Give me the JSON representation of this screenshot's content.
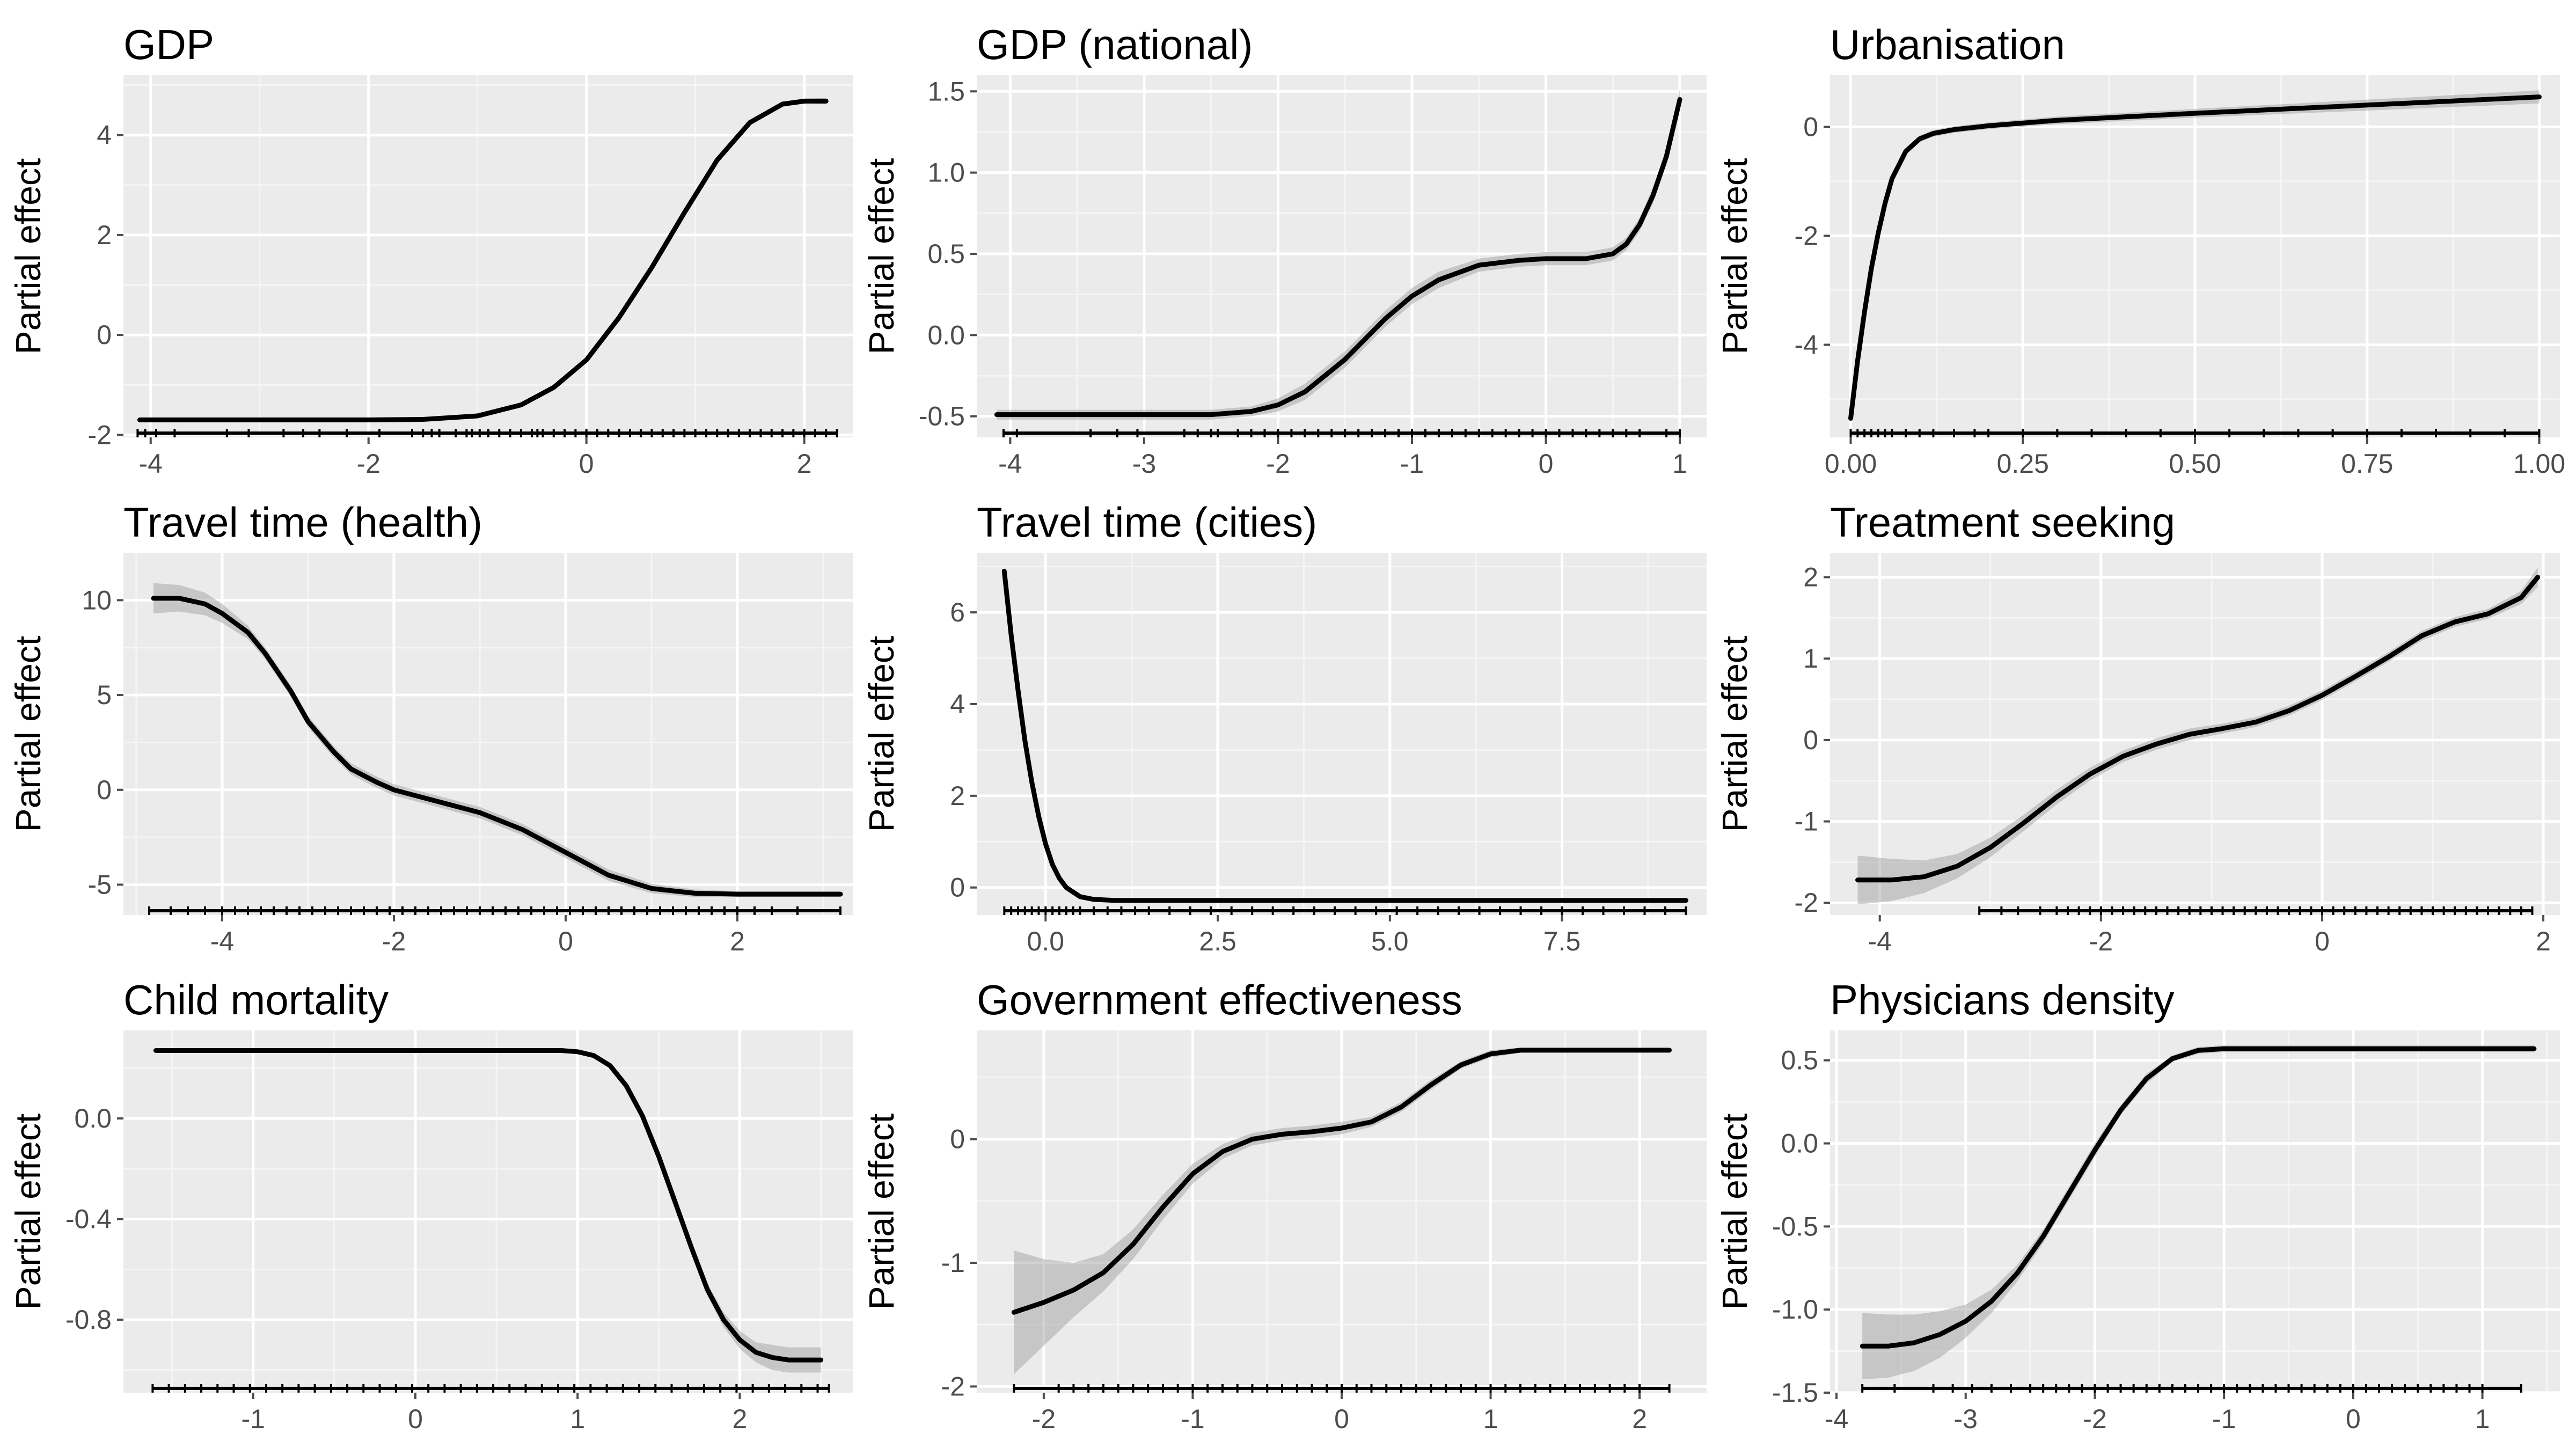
{
  "chart_data": [
    {
      "type": "line",
      "title": "GDP",
      "xlabel": "",
      "ylabel": "Partial effect",
      "xlim": [
        -4.25,
        2.45
      ],
      "ylim": [
        -2.05,
        5.2
      ],
      "x_ticks": [
        -4,
        -2,
        0,
        2
      ],
      "x_tick_labels": [
        "-4",
        "-2",
        "0",
        "2"
      ],
      "y_ticks": [
        -2,
        0,
        2,
        4
      ],
      "y_tick_labels": [
        "-2",
        "0",
        "2",
        "4"
      ],
      "grid": true,
      "x": [
        -4.1,
        -3,
        -2,
        -1.5,
        -1,
        -0.6,
        -0.3,
        0,
        0.3,
        0.6,
        0.9,
        1.2,
        1.5,
        1.8,
        2,
        2.2
      ],
      "y": [
        -1.7,
        -1.7,
        -1.7,
        -1.69,
        -1.62,
        -1.4,
        -1.05,
        -0.5,
        0.35,
        1.35,
        2.45,
        3.5,
        4.25,
        4.62,
        4.68,
        4.68
      ],
      "ci_halfwidth": [
        0.04,
        0.04,
        0.04,
        0.04,
        0.04,
        0.05,
        0.05,
        0.05,
        0.05,
        0.05,
        0.05,
        0.05,
        0.05,
        0.05,
        0.05,
        0.06
      ],
      "rug": [
        -4.12,
        -4.05,
        -3.95,
        -3.78,
        -3.3,
        -3.1,
        -2.78,
        -2.6,
        -2.45,
        -2.2,
        -1.9,
        -1.6,
        -1.5,
        -1.42,
        -1.35,
        -1.2,
        -1.1,
        -1.05,
        -0.98,
        -0.9,
        -0.8,
        -0.7,
        -0.6,
        -0.5,
        -0.45,
        -0.4,
        -0.3,
        -0.2,
        -0.1,
        0,
        0.1,
        0.2,
        0.3,
        0.4,
        0.5,
        0.6,
        0.7,
        0.8,
        0.9,
        1.0,
        1.1,
        1.2,
        1.3,
        1.4,
        1.5,
        1.6,
        1.7,
        1.8,
        1.9,
        2.0,
        2.1,
        2.2,
        2.3
      ]
    },
    {
      "type": "line",
      "title": "GDP (national)",
      "xlabel": "",
      "ylabel": "Partial effect",
      "xlim": [
        -4.25,
        1.2
      ],
      "ylim": [
        -0.63,
        1.6
      ],
      "x_ticks": [
        -4,
        -3,
        -2,
        -1,
        0,
        1
      ],
      "x_tick_labels": [
        "-4",
        "-3",
        "-2",
        "-1",
        "0",
        "1"
      ],
      "y_ticks": [
        -0.5,
        0,
        0.5,
        1,
        1.5
      ],
      "y_tick_labels": [
        "-0.5",
        "0.0",
        "0.5",
        "1.0",
        "1.5"
      ],
      "grid": true,
      "x": [
        -4.1,
        -3,
        -2.5,
        -2.2,
        -2,
        -1.8,
        -1.5,
        -1.2,
        -1,
        -0.8,
        -0.5,
        -0.2,
        0,
        0.3,
        0.5,
        0.6,
        0.7,
        0.8,
        0.9,
        1
      ],
      "y": [
        -0.49,
        -0.49,
        -0.49,
        -0.47,
        -0.43,
        -0.35,
        -0.15,
        0.1,
        0.24,
        0.34,
        0.43,
        0.46,
        0.47,
        0.47,
        0.5,
        0.56,
        0.68,
        0.86,
        1.1,
        1.45
      ],
      "ci_halfwidth": [
        0.03,
        0.03,
        0.03,
        0.03,
        0.04,
        0.05,
        0.05,
        0.05,
        0.05,
        0.05,
        0.04,
        0.04,
        0.04,
        0.04,
        0.04,
        0.04,
        0.04,
        0.05,
        0.05,
        0.06
      ],
      "rug": [
        -4.05,
        -3.95,
        -3.4,
        -3.2,
        -3.05,
        -2.7,
        -2.6,
        -2.5,
        -2.45,
        -2.3,
        -2.2,
        -2.1,
        -2.0,
        -1.9,
        -1.8,
        -1.7,
        -1.6,
        -1.5,
        -1.4,
        -1.3,
        -1.2,
        -1.1,
        -1.0,
        -0.9,
        -0.8,
        -0.7,
        -0.6,
        -0.5,
        -0.4,
        -0.3,
        -0.2,
        -0.1,
        0,
        0.1,
        0.2,
        0.3,
        0.4,
        0.5,
        0.6,
        0.7,
        0.9,
        1.0
      ]
    },
    {
      "type": "line",
      "title": "Urbanisation",
      "xlabel": "",
      "ylabel": "Partial effect",
      "xlim": [
        -0.03,
        1.03
      ],
      "ylim": [
        -5.7,
        0.95
      ],
      "x_ticks": [
        0,
        0.25,
        0.5,
        0.75,
        1
      ],
      "x_tick_labels": [
        "0.00",
        "0.25",
        "0.50",
        "0.75",
        "1.00"
      ],
      "y_ticks": [
        -4,
        -2,
        0
      ],
      "y_tick_labels": [
        "-4",
        "-2",
        "0"
      ],
      "grid": true,
      "x": [
        0,
        0.01,
        0.02,
        0.03,
        0.04,
        0.05,
        0.06,
        0.08,
        0.1,
        0.12,
        0.15,
        0.2,
        0.3,
        0.5,
        0.75,
        1
      ],
      "y": [
        -5.35,
        -4.3,
        -3.4,
        -2.6,
        -1.95,
        -1.4,
        -0.95,
        -0.45,
        -0.22,
        -0.12,
        -0.05,
        0.02,
        0.12,
        0.25,
        0.4,
        0.55
      ],
      "ci_halfwidth": [
        0.08,
        0.08,
        0.07,
        0.07,
        0.06,
        0.06,
        0.06,
        0.06,
        0.06,
        0.06,
        0.06,
        0.06,
        0.07,
        0.08,
        0.1,
        0.12
      ],
      "rug": [
        0,
        0.01,
        0.02,
        0.03,
        0.04,
        0.05,
        0.06,
        0.08,
        0.1,
        0.12,
        0.15,
        0.18,
        0.2,
        0.25,
        0.3,
        0.35,
        0.4,
        0.45,
        0.5,
        0.55,
        0.6,
        0.65,
        0.7,
        0.75,
        0.8,
        0.85,
        0.9,
        0.95,
        1
      ]
    },
    {
      "type": "line",
      "title": "Travel time (health)",
      "xlabel": "",
      "ylabel": "Partial effect",
      "xlim": [
        -5.15,
        3.35
      ],
      "ylim": [
        -6.6,
        12.5
      ],
      "x_ticks": [
        -4,
        -2,
        0,
        2
      ],
      "x_tick_labels": [
        "-4",
        "-2",
        "0",
        "2"
      ],
      "y_ticks": [
        -5,
        0,
        5,
        10
      ],
      "y_tick_labels": [
        "-5",
        "0",
        "5",
        "10"
      ],
      "grid": true,
      "x": [
        -4.8,
        -4.5,
        -4.2,
        -4,
        -3.7,
        -3.5,
        -3.2,
        -3,
        -2.7,
        -2.5,
        -2.2,
        -2,
        -1.5,
        -1,
        -0.5,
        0,
        0.5,
        1,
        1.5,
        2,
        2.5,
        3.2
      ],
      "y": [
        10.1,
        10.1,
        9.8,
        9.3,
        8.3,
        7.2,
        5.2,
        3.6,
        2.0,
        1.1,
        0.4,
        0.0,
        -0.6,
        -1.2,
        -2.1,
        -3.3,
        -4.5,
        -5.2,
        -5.45,
        -5.5,
        -5.5,
        -5.5
      ],
      "ci_halfwidth": [
        0.8,
        0.7,
        0.6,
        0.5,
        0.35,
        0.3,
        0.3,
        0.3,
        0.3,
        0.3,
        0.3,
        0.3,
        0.3,
        0.3,
        0.3,
        0.3,
        0.3,
        0.25,
        0.2,
        0.15,
        0.15,
        0.15
      ],
      "rug": [
        -4.85,
        -4.6,
        -4.4,
        -4.2,
        -4.0,
        -3.85,
        -3.7,
        -3.55,
        -3.4,
        -3.25,
        -3.1,
        -2.95,
        -2.8,
        -2.65,
        -2.5,
        -2.35,
        -2.2,
        -2.05,
        -1.9,
        -1.75,
        -1.6,
        -1.45,
        -1.3,
        -1.15,
        -1.0,
        -0.85,
        -0.7,
        -0.55,
        -0.4,
        -0.25,
        -0.1,
        0.05,
        0.2,
        0.35,
        0.5,
        0.65,
        0.8,
        0.95,
        1.1,
        1.25,
        1.4,
        1.55,
        1.7,
        1.85,
        2.0,
        2.2,
        2.4,
        2.7,
        3.2
      ]
    },
    {
      "type": "line",
      "title": "Travel time (cities)",
      "xlabel": "",
      "ylabel": "Partial effect",
      "xlim": [
        -1.0,
        9.6
      ],
      "ylim": [
        -0.6,
        7.3
      ],
      "x_ticks": [
        0,
        2.5,
        5,
        7.5
      ],
      "x_tick_labels": [
        "0.0",
        "2.5",
        "5.0",
        "7.5"
      ],
      "y_ticks": [
        0,
        2,
        4,
        6
      ],
      "y_tick_labels": [
        "0",
        "2",
        "4",
        "6"
      ],
      "grid": true,
      "x": [
        -0.6,
        -0.5,
        -0.4,
        -0.3,
        -0.2,
        -0.1,
        0,
        0.1,
        0.2,
        0.3,
        0.5,
        0.7,
        1,
        2,
        4,
        6,
        8,
        9.3
      ],
      "y": [
        6.9,
        5.5,
        4.3,
        3.2,
        2.3,
        1.55,
        0.95,
        0.5,
        0.2,
        0.0,
        -0.2,
        -0.26,
        -0.28,
        -0.28,
        -0.28,
        -0.28,
        -0.28,
        -0.28
      ],
      "ci_halfwidth": [
        0.06,
        0.05,
        0.05,
        0.04,
        0.04,
        0.04,
        0.03,
        0.03,
        0.03,
        0.03,
        0.03,
        0.02,
        0.02,
        0.02,
        0.02,
        0.02,
        0.02,
        0.02
      ],
      "rug": [
        -0.6,
        -0.5,
        -0.4,
        -0.3,
        -0.2,
        -0.1,
        0,
        0.1,
        0.2,
        0.3,
        0.4,
        0.5,
        0.7,
        0.9,
        1.1,
        1.3,
        1.5,
        1.8,
        2.1,
        2.4,
        2.7,
        3.0,
        3.3,
        3.6,
        3.9,
        4.2,
        4.5,
        4.8,
        5.1,
        5.4,
        5.7,
        6.0,
        6.3,
        6.6,
        6.9,
        7.2,
        7.5,
        7.8,
        8.1,
        8.4,
        8.7,
        9.0,
        9.3
      ]
    },
    {
      "type": "line",
      "title": "Treatment seeking",
      "xlabel": "",
      "ylabel": "Partial effect",
      "xlim": [
        -4.45,
        2.15
      ],
      "ylim": [
        -2.15,
        2.3
      ],
      "x_ticks": [
        -4,
        -2,
        0,
        2
      ],
      "x_tick_labels": [
        "-4",
        "-2",
        "0",
        "2"
      ],
      "y_ticks": [
        -2,
        -1,
        0,
        1,
        2
      ],
      "y_tick_labels": [
        "-2",
        "-1",
        "0",
        "1",
        "2"
      ],
      "grid": true,
      "x": [
        -4.2,
        -3.9,
        -3.6,
        -3.3,
        -3.0,
        -2.7,
        -2.4,
        -2.1,
        -1.8,
        -1.5,
        -1.2,
        -0.9,
        -0.6,
        -0.3,
        0,
        0.3,
        0.6,
        0.9,
        1.2,
        1.5,
        1.8,
        1.95
      ],
      "y": [
        -1.72,
        -1.72,
        -1.68,
        -1.55,
        -1.32,
        -1.02,
        -0.7,
        -0.42,
        -0.2,
        -0.05,
        0.07,
        0.14,
        0.22,
        0.36,
        0.55,
        0.78,
        1.02,
        1.28,
        1.45,
        1.55,
        1.75,
        2.0
      ],
      "ci_halfwidth": [
        0.3,
        0.26,
        0.2,
        0.15,
        0.12,
        0.1,
        0.09,
        0.08,
        0.07,
        0.07,
        0.07,
        0.06,
        0.06,
        0.06,
        0.06,
        0.06,
        0.06,
        0.06,
        0.06,
        0.06,
        0.08,
        0.12
      ],
      "rug": [
        -3.1,
        -2.9,
        -2.75,
        -2.55,
        -2.4,
        -2.3,
        -2.2,
        -2.1,
        -2.0,
        -1.9,
        -1.8,
        -1.7,
        -1.6,
        -1.5,
        -1.4,
        -1.3,
        -1.2,
        -1.1,
        -1.0,
        -0.9,
        -0.8,
        -0.7,
        -0.6,
        -0.5,
        -0.4,
        -0.3,
        -0.2,
        -0.1,
        0,
        0.1,
        0.2,
        0.3,
        0.4,
        0.5,
        0.6,
        0.7,
        0.8,
        0.9,
        1.0,
        1.1,
        1.2,
        1.3,
        1.4,
        1.5,
        1.6,
        1.7,
        1.8,
        1.9
      ]
    },
    {
      "type": "line",
      "title": "Child mortality",
      "xlabel": "",
      "ylabel": "Partial effect",
      "xlim": [
        -1.8,
        2.7
      ],
      "ylim": [
        -1.09,
        0.35
      ],
      "x_ticks": [
        -1,
        0,
        1,
        2
      ],
      "x_tick_labels": [
        "-1",
        "0",
        "1",
        "2"
      ],
      "y_ticks": [
        -0.8,
        -0.4,
        0
      ],
      "y_tick_labels": [
        "-0.8",
        "-0.4",
        "0.0"
      ],
      "grid": true,
      "x": [
        -1.6,
        -1,
        0,
        0.5,
        0.8,
        0.9,
        1.0,
        1.1,
        1.2,
        1.3,
        1.4,
        1.5,
        1.6,
        1.7,
        1.8,
        1.9,
        2.0,
        2.1,
        2.2,
        2.3,
        2.4,
        2.5
      ],
      "y": [
        0.27,
        0.27,
        0.27,
        0.27,
        0.27,
        0.27,
        0.265,
        0.25,
        0.21,
        0.13,
        0.01,
        -0.15,
        -0.33,
        -0.51,
        -0.68,
        -0.8,
        -0.88,
        -0.93,
        -0.95,
        -0.96,
        -0.96,
        -0.96
      ],
      "ci_halfwidth": [
        0.008,
        0.008,
        0.008,
        0.008,
        0.008,
        0.008,
        0.008,
        0.008,
        0.01,
        0.01,
        0.012,
        0.012,
        0.015,
        0.02,
        0.025,
        0.03,
        0.035,
        0.04,
        0.05,
        0.05,
        0.05,
        0.05
      ],
      "rug": [
        -1.62,
        -1.52,
        -1.42,
        -1.32,
        -1.22,
        -1.12,
        -1.02,
        -0.92,
        -0.82,
        -0.72,
        -0.62,
        -0.52,
        -0.42,
        -0.32,
        -0.22,
        -0.12,
        -0.02,
        0.08,
        0.18,
        0.28,
        0.38,
        0.48,
        0.58,
        0.68,
        0.78,
        0.88,
        0.98,
        1.08,
        1.18,
        1.28,
        1.38,
        1.48,
        1.58,
        1.68,
        1.78,
        1.88,
        1.98,
        2.08,
        2.18,
        2.28,
        2.38,
        2.48,
        2.55
      ]
    },
    {
      "type": "line",
      "title": "Government effectiveness",
      "xlabel": "",
      "ylabel": "Partial effect",
      "xlim": [
        -2.45,
        2.45
      ],
      "ylim": [
        -2.05,
        0.88
      ],
      "x_ticks": [
        -2,
        -1,
        0,
        1,
        2
      ],
      "x_tick_labels": [
        "-2",
        "-1",
        "0",
        "1",
        "2"
      ],
      "y_ticks": [
        -2,
        -1,
        0
      ],
      "y_tick_labels": [
        "-2",
        "-1",
        "0"
      ],
      "grid": true,
      "x": [
        -2.2,
        -2.0,
        -1.8,
        -1.6,
        -1.4,
        -1.2,
        -1.0,
        -0.8,
        -0.6,
        -0.4,
        -0.2,
        0,
        0.2,
        0.4,
        0.6,
        0.8,
        1.0,
        1.2,
        1.5,
        2.0,
        2.2
      ],
      "y": [
        -1.4,
        -1.32,
        -1.22,
        -1.08,
        -0.85,
        -0.55,
        -0.28,
        -0.1,
        0.0,
        0.04,
        0.06,
        0.09,
        0.14,
        0.26,
        0.44,
        0.6,
        0.69,
        0.72,
        0.72,
        0.72,
        0.72
      ],
      "ci_halfwidth": [
        0.5,
        0.35,
        0.22,
        0.15,
        0.12,
        0.1,
        0.08,
        0.06,
        0.05,
        0.05,
        0.05,
        0.05,
        0.04,
        0.04,
        0.04,
        0.03,
        0.03,
        0.02,
        0.02,
        0.02,
        0.02
      ],
      "rug": [
        -2.2,
        -1.9,
        -1.8,
        -1.7,
        -1.6,
        -1.5,
        -1.4,
        -1.3,
        -1.2,
        -1.1,
        -1.0,
        -0.9,
        -0.8,
        -0.7,
        -0.6,
        -0.5,
        -0.4,
        -0.3,
        -0.2,
        -0.1,
        0,
        0.1,
        0.2,
        0.3,
        0.4,
        0.5,
        0.6,
        0.7,
        0.8,
        0.9,
        1.0,
        1.1,
        1.2,
        1.3,
        1.4,
        1.5,
        1.6,
        1.7,
        1.8,
        1.9,
        2.0,
        2.2
      ]
    },
    {
      "type": "line",
      "title": "Physicians density",
      "xlabel": "",
      "ylabel": "Partial effect",
      "xlim": [
        -4.05,
        1.6
      ],
      "ylim": [
        -1.5,
        0.68
      ],
      "x_ticks": [
        -4,
        -3,
        -2,
        -1,
        0,
        1
      ],
      "x_tick_labels": [
        "-4",
        "-3",
        "-2",
        "-1",
        "0",
        "1"
      ],
      "y_ticks": [
        -1.5,
        -1,
        -0.5,
        0,
        0.5
      ],
      "y_tick_labels": [
        "-1.5",
        "-1.0",
        "-0.5",
        "0.0",
        "0.5"
      ],
      "grid": true,
      "x": [
        -3.8,
        -3.6,
        -3.4,
        -3.2,
        -3.0,
        -2.8,
        -2.6,
        -2.4,
        -2.2,
        -2.0,
        -1.8,
        -1.6,
        -1.4,
        -1.2,
        -1.0,
        -0.5,
        0,
        0.5,
        1.0,
        1.4
      ],
      "y": [
        -1.22,
        -1.22,
        -1.2,
        -1.15,
        -1.07,
        -0.95,
        -0.78,
        -0.56,
        -0.3,
        -0.04,
        0.2,
        0.39,
        0.51,
        0.56,
        0.57,
        0.57,
        0.57,
        0.57,
        0.57,
        0.57
      ],
      "ci_halfwidth": [
        0.2,
        0.19,
        0.17,
        0.14,
        0.1,
        0.07,
        0.05,
        0.04,
        0.04,
        0.04,
        0.03,
        0.03,
        0.02,
        0.02,
        0.02,
        0.02,
        0.02,
        0.02,
        0.02,
        0.02
      ],
      "rug": [
        -3.8,
        -3.55,
        -3.25,
        -3.1,
        -2.95,
        -2.8,
        -2.65,
        -2.5,
        -2.4,
        -2.3,
        -2.2,
        -2.1,
        -2.0,
        -1.9,
        -1.8,
        -1.7,
        -1.6,
        -1.5,
        -1.4,
        -1.3,
        -1.2,
        -1.1,
        -1.0,
        -0.9,
        -0.8,
        -0.7,
        -0.6,
        -0.5,
        -0.4,
        -0.3,
        -0.2,
        -0.1,
        0,
        0.1,
        0.2,
        0.3,
        0.4,
        0.5,
        0.6,
        0.7,
        0.8,
        0.9,
        1.0,
        1.3
      ]
    }
  ],
  "style": {
    "panel_bg": "#ebebeb",
    "grid_major": "#ffffff",
    "grid_minor": "#f5f5f5",
    "line_color": "#000000",
    "ribbon_color": "#999999",
    "tick_color": "#4d4d4d"
  }
}
